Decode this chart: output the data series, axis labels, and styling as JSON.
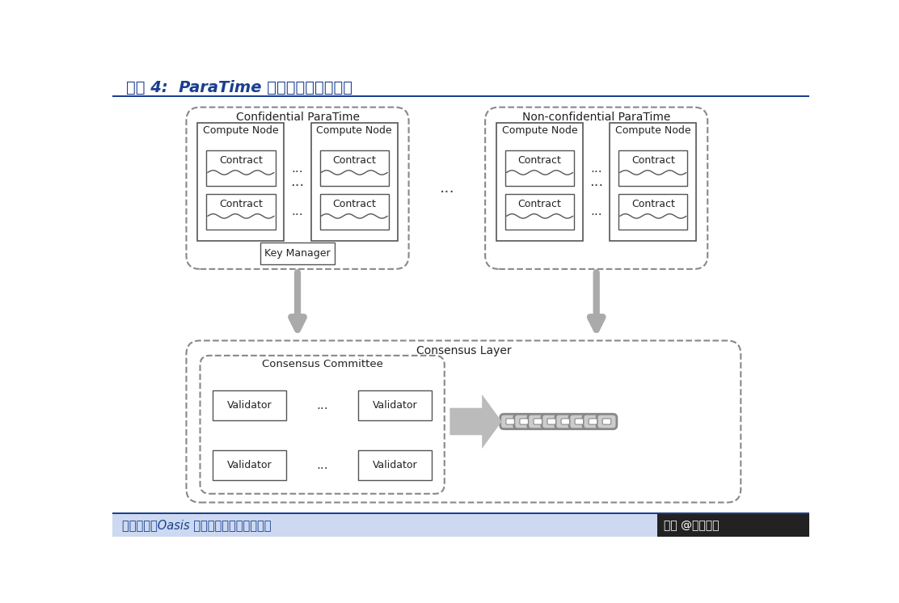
{
  "title": "图表 4:  ParaTime 层与共识层工作流程",
  "footer": "资料来源：Oasis 白皮书，国盛证券研究所",
  "watermark": "头条 @远瞻智库",
  "bg_color": "#ffffff",
  "title_color": "#1a3f8f",
  "title_line_color": "#1a3f8f",
  "footer_color": "#1a3f8f",
  "footer_bg": "#ccd9f0",
  "dashed_border_color": "#888888",
  "box_border_color": "#444444",
  "box_fill": "#ffffff",
  "arrow_color": "#aaaaaa",
  "chain_color": "#aaaaaa",
  "text_color": "#222222",
  "confidential_label": "Confidential ParaTime",
  "nonconfidential_label": "Non-confidential ParaTime",
  "consensus_label": "Consensus Layer",
  "committee_label": "Consensus Committee",
  "key_manager_label": "Key Manager",
  "compute_node_label": "Compute Node",
  "contract_label": "Contract",
  "validator_label": "Validator",
  "dots": "..."
}
